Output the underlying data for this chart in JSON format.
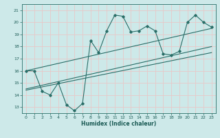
{
  "title": "",
  "xlabel": "Humidex (Indice chaleur)",
  "xlim": [
    -0.5,
    23.5
  ],
  "ylim": [
    12.5,
    21.5
  ],
  "xticks": [
    0,
    1,
    2,
    3,
    4,
    5,
    6,
    7,
    8,
    9,
    10,
    11,
    12,
    13,
    14,
    15,
    16,
    17,
    18,
    19,
    20,
    21,
    22,
    23
  ],
  "yticks": [
    13,
    14,
    15,
    16,
    17,
    18,
    19,
    20,
    21
  ],
  "bg_color": "#cde9e9",
  "grid_color": "#e8c8c8",
  "line_color": "#2a6e68",
  "data_line": {
    "x": [
      0,
      1,
      2,
      3,
      4,
      5,
      6,
      7,
      8,
      9,
      10,
      11,
      12,
      13,
      14,
      15,
      16,
      17,
      18,
      19,
      20,
      21,
      22,
      23
    ],
    "y": [
      16.0,
      16.0,
      14.3,
      14.0,
      15.0,
      13.2,
      12.7,
      13.3,
      18.5,
      17.5,
      19.3,
      20.6,
      20.5,
      19.2,
      19.3,
      19.7,
      19.3,
      17.4,
      17.3,
      17.6,
      20.0,
      20.6,
      20.0,
      19.6
    ]
  },
  "trend_line1": {
    "x": [
      0,
      23
    ],
    "y": [
      16.0,
      19.5
    ]
  },
  "trend_line2": {
    "x": [
      0,
      23
    ],
    "y": [
      14.5,
      18.0
    ]
  },
  "trend_line3": {
    "x": [
      0,
      23
    ],
    "y": [
      14.4,
      17.5
    ]
  }
}
